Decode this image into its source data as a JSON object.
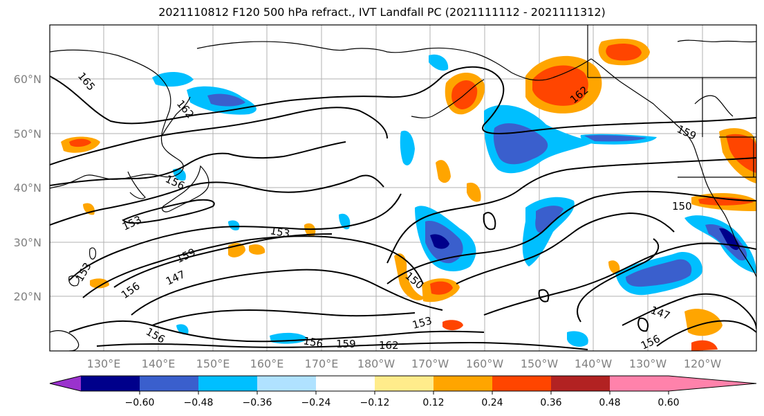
{
  "title": "2021110812 F120 500 hPa refract., IVT Landfall PC (2021111112 - 2021111312)",
  "map": {
    "lat_labels": [
      "60°N",
      "50°N",
      "40°N",
      "30°N",
      "20°N"
    ],
    "lon_labels": [
      "130°E",
      "140°E",
      "150°E",
      "160°E",
      "170°E",
      "180°W",
      "170°W",
      "160°W",
      "150°W",
      "140°W",
      "130°W",
      "120°W"
    ],
    "contour_labels": [
      "165",
      "162",
      "159",
      "156",
      "153",
      "150",
      "147"
    ]
  },
  "colorbar": {
    "tick_labels": [
      "−0.60",
      "−0.48",
      "−0.36",
      "−0.24",
      "−0.12",
      "0.12",
      "0.24",
      "0.36",
      "0.48",
      "0.60"
    ],
    "colors": [
      "#9a32cd",
      "#00008b",
      "#3a5fcd",
      "#00bfff",
      "#b0e2ff",
      "#ffffff",
      "#ffec8b",
      "#ffa500",
      "#ff4500",
      "#b22222",
      "#ff82ab"
    ]
  }
}
